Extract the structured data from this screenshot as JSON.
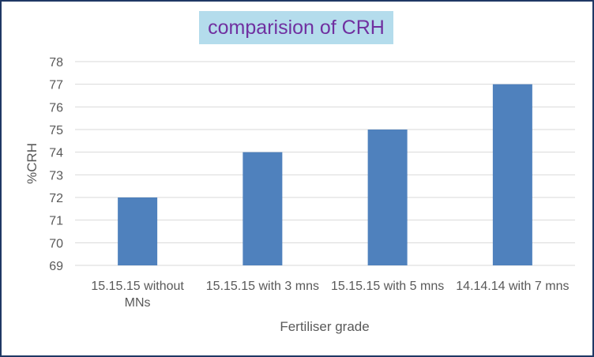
{
  "chart_data": {
    "type": "bar",
    "title": "comparision of CRH",
    "xlabel": "Fertiliser grade",
    "ylabel": "%CRH",
    "categories": [
      [
        "15.15.15 without",
        "MNs"
      ],
      [
        "15.15.15 with 3 mns"
      ],
      [
        "15.15.15 with 5 mns"
      ],
      [
        "14.14.14 with 7 mns"
      ]
    ],
    "values": [
      72,
      74,
      75,
      77
    ],
    "ylim": [
      69,
      78
    ],
    "yticks": [
      "69",
      "70",
      "71",
      "72",
      "73",
      "74",
      "75",
      "76",
      "77",
      "78"
    ],
    "grid": true,
    "legend": "none",
    "colors": {
      "bar": "#4f81bd",
      "grid": "#d9d9d9",
      "title": "#7030a0",
      "title_bg": "#b4dcec",
      "border": "#1f3864"
    }
  }
}
